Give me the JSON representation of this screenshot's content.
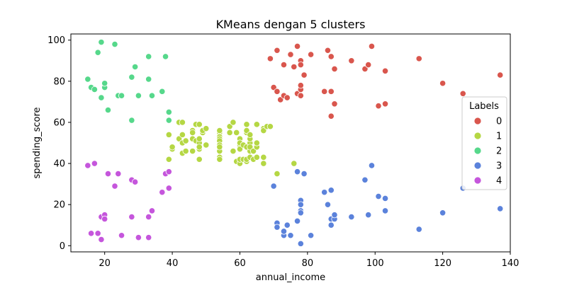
{
  "chart_data": {
    "type": "scatter",
    "title": "KMeans dengan 5 clusters",
    "xlabel": "annual_income",
    "ylabel": "spending_score",
    "xlim": [
      10,
      140
    ],
    "ylim": [
      -3,
      103
    ],
    "xticks": [
      20,
      40,
      60,
      80,
      100,
      120,
      140
    ],
    "yticks": [
      0,
      20,
      40,
      60,
      80,
      100
    ],
    "grid": false,
    "legend": {
      "title": "Labels",
      "placement": "right"
    },
    "series": [
      {
        "name": "0",
        "color": "#d9564d",
        "points": [
          [
            69,
            91
          ],
          [
            70,
            77
          ],
          [
            71,
            95
          ],
          [
            71,
            75
          ],
          [
            72,
            71
          ],
          [
            73,
            88
          ],
          [
            73,
            73
          ],
          [
            74,
            72
          ],
          [
            75,
            93
          ],
          [
            76,
            87
          ],
          [
            77,
            97
          ],
          [
            77,
            74
          ],
          [
            78,
            90
          ],
          [
            78,
            88
          ],
          [
            78,
            76
          ],
          [
            78,
            78
          ],
          [
            78,
            73
          ],
          [
            79,
            83
          ],
          [
            81,
            93
          ],
          [
            85,
            75
          ],
          [
            86,
            95
          ],
          [
            87,
            63
          ],
          [
            87,
            75
          ],
          [
            87,
            92
          ],
          [
            88,
            86
          ],
          [
            88,
            69
          ],
          [
            93,
            90
          ],
          [
            97,
            86
          ],
          [
            98,
            88
          ],
          [
            99,
            97
          ],
          [
            101,
            68
          ],
          [
            103,
            85
          ],
          [
            103,
            69
          ],
          [
            113,
            91
          ],
          [
            120,
            79
          ],
          [
            126,
            74
          ],
          [
            137,
            83
          ]
        ]
      },
      {
        "name": "1",
        "color": "#b5d744",
        "points": [
          [
            39,
            42
          ],
          [
            39,
            54
          ],
          [
            40,
            47
          ],
          [
            40,
            48
          ],
          [
            42,
            52
          ],
          [
            42,
            60
          ],
          [
            43,
            60
          ],
          [
            43,
            54
          ],
          [
            43,
            45
          ],
          [
            43,
            50
          ],
          [
            44,
            46
          ],
          [
            44,
            51
          ],
          [
            46,
            56
          ],
          [
            46,
            55
          ],
          [
            46,
            52
          ],
          [
            46,
            46
          ],
          [
            47,
            59
          ],
          [
            47,
            51
          ],
          [
            48,
            59
          ],
          [
            48,
            50
          ],
          [
            48,
            47
          ],
          [
            48,
            48
          ],
          [
            48,
            52
          ],
          [
            48,
            42
          ],
          [
            49,
            55
          ],
          [
            49,
            56
          ],
          [
            50,
            49
          ],
          [
            50,
            57
          ],
          [
            54,
            55
          ],
          [
            54,
            56
          ],
          [
            54,
            53
          ],
          [
            54,
            52
          ],
          [
            54,
            51
          ],
          [
            54,
            49
          ],
          [
            54,
            47
          ],
          [
            54,
            46
          ],
          [
            54,
            48
          ],
          [
            54,
            43
          ],
          [
            54,
            42
          ],
          [
            57,
            58
          ],
          [
            57,
            55
          ],
          [
            58,
            60
          ],
          [
            58,
            46
          ],
          [
            59,
            55
          ],
          [
            59,
            41
          ],
          [
            60,
            49
          ],
          [
            60,
            40
          ],
          [
            60,
            42
          ],
          [
            60,
            52
          ],
          [
            60,
            47
          ],
          [
            60,
            50
          ],
          [
            61,
            42
          ],
          [
            61,
            49
          ],
          [
            62,
            41
          ],
          [
            62,
            48
          ],
          [
            62,
            59
          ],
          [
            62,
            55
          ],
          [
            62,
            56
          ],
          [
            62,
            42
          ],
          [
            63,
            50
          ],
          [
            63,
            46
          ],
          [
            63,
            43
          ],
          [
            63,
            48
          ],
          [
            63,
            52
          ],
          [
            63,
            54
          ],
          [
            64,
            42
          ],
          [
            64,
            46
          ],
          [
            65,
            48
          ],
          [
            65,
            50
          ],
          [
            65,
            43
          ],
          [
            65,
            59
          ],
          [
            67,
            43
          ],
          [
            67,
            57
          ],
          [
            67,
            56
          ],
          [
            67,
            40
          ],
          [
            68,
            58
          ],
          [
            69,
            58
          ],
          [
            71,
            35
          ],
          [
            76,
            40
          ]
        ]
      },
      {
        "name": "2",
        "color": "#56d88b",
        "points": [
          [
            15,
            81
          ],
          [
            16,
            77
          ],
          [
            17,
            76
          ],
          [
            18,
            94
          ],
          [
            19,
            72
          ],
          [
            19,
            99
          ],
          [
            20,
            77
          ],
          [
            20,
            79
          ],
          [
            21,
            66
          ],
          [
            23,
            98
          ],
          [
            24,
            73
          ],
          [
            25,
            73
          ],
          [
            28,
            82
          ],
          [
            28,
            61
          ],
          [
            29,
            87
          ],
          [
            30,
            73
          ],
          [
            33,
            92
          ],
          [
            33,
            81
          ],
          [
            34,
            73
          ],
          [
            37,
            75
          ],
          [
            38,
            92
          ],
          [
            39,
            65
          ],
          [
            39,
            61
          ]
        ]
      },
      {
        "name": "3",
        "color": "#5b82db",
        "points": [
          [
            70,
            29
          ],
          [
            71,
            11
          ],
          [
            71,
            9
          ],
          [
            73,
            5
          ],
          [
            73,
            7
          ],
          [
            74,
            10
          ],
          [
            75,
            5
          ],
          [
            77,
            12
          ],
          [
            77,
            36
          ],
          [
            78,
            22
          ],
          [
            78,
            17
          ],
          [
            78,
            20
          ],
          [
            78,
            16
          ],
          [
            78,
            1
          ],
          [
            78,
            1
          ],
          [
            79,
            35
          ],
          [
            81,
            5
          ],
          [
            85,
            26
          ],
          [
            86,
            20
          ],
          [
            87,
            27
          ],
          [
            87,
            13
          ],
          [
            87,
            10
          ],
          [
            88,
            13
          ],
          [
            88,
            15
          ],
          [
            93,
            14
          ],
          [
            97,
            32
          ],
          [
            98,
            15
          ],
          [
            99,
            39
          ],
          [
            101,
            24
          ],
          [
            103,
            17
          ],
          [
            103,
            23
          ],
          [
            113,
            8
          ],
          [
            120,
            16
          ],
          [
            126,
            28
          ],
          [
            137,
            18
          ]
        ]
      },
      {
        "name": "4",
        "color": "#c556dc",
        "points": [
          [
            15,
            39
          ],
          [
            16,
            6
          ],
          [
            17,
            40
          ],
          [
            18,
            6
          ],
          [
            19,
            3
          ],
          [
            19,
            14
          ],
          [
            20,
            15
          ],
          [
            20,
            13
          ],
          [
            21,
            35
          ],
          [
            23,
            29
          ],
          [
            24,
            35
          ],
          [
            25,
            5
          ],
          [
            28,
            14
          ],
          [
            28,
            32
          ],
          [
            29,
            31
          ],
          [
            30,
            4
          ],
          [
            33,
            4
          ],
          [
            33,
            14
          ],
          [
            34,
            17
          ],
          [
            37,
            26
          ],
          [
            38,
            35
          ],
          [
            39,
            36
          ],
          [
            39,
            28
          ]
        ]
      }
    ]
  }
}
